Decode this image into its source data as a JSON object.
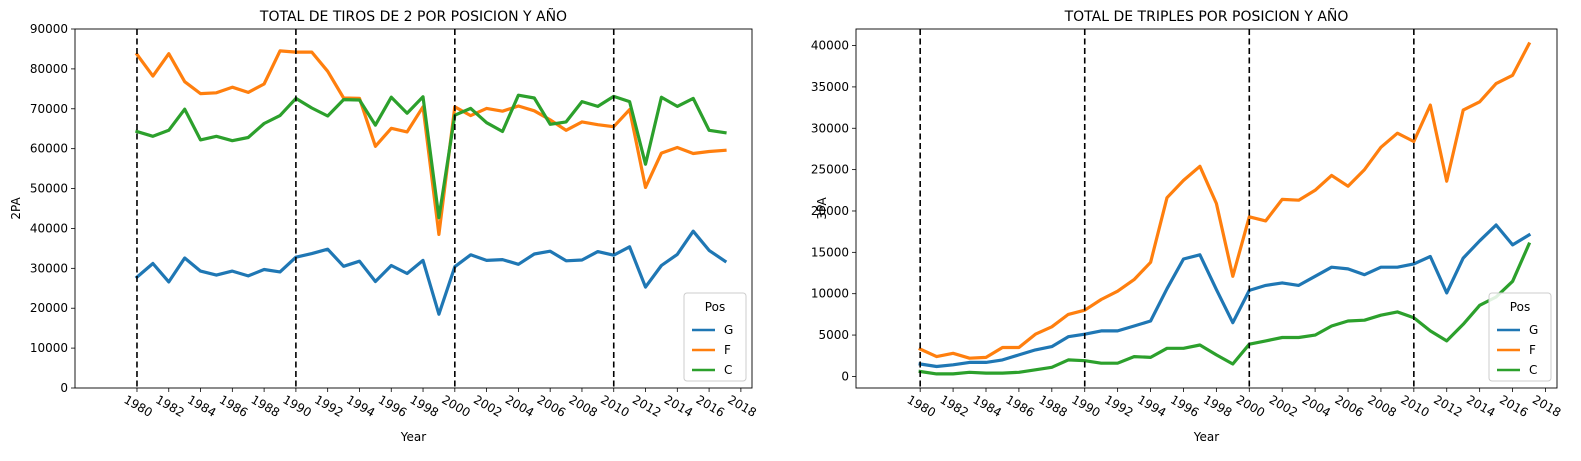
{
  "chart_data": [
    {
      "type": "line",
      "title": "TOTAL DE TIROS DE 2 POR POSICION Y AÑO",
      "xlabel": "Year",
      "ylabel": "2PA",
      "xlim": [
        1976.1,
        2018.7
      ],
      "ylim": [
        0,
        90000
      ],
      "xticks": [
        1980,
        1982,
        1984,
        1986,
        1988,
        1990,
        1992,
        1994,
        1996,
        1998,
        2000,
        2002,
        2004,
        2006,
        2008,
        2010,
        2012,
        2014,
        2016,
        2018
      ],
      "yticks": [
        0,
        10000,
        20000,
        30000,
        40000,
        50000,
        60000,
        70000,
        80000,
        90000
      ],
      "vlines": [
        1980,
        1990,
        2000,
        2010
      ],
      "legend": {
        "title": "Pos",
        "position": "lower-right"
      },
      "x": [
        1980,
        1981,
        1982,
        1983,
        1984,
        1985,
        1986,
        1987,
        1988,
        1989,
        1990,
        1991,
        1992,
        1993,
        1994,
        1995,
        1996,
        1997,
        1998,
        1999,
        2000,
        2001,
        2002,
        2003,
        2004,
        2005,
        2006,
        2007,
        2008,
        2009,
        2010,
        2011,
        2012,
        2013,
        2014,
        2015,
        2016,
        2017
      ],
      "series": [
        {
          "name": "G",
          "color": "#1f77b4",
          "values": [
            27800,
            31200,
            26600,
            32600,
            29300,
            28300,
            29300,
            28100,
            29700,
            29100,
            32800,
            33700,
            34800,
            30500,
            31800,
            26700,
            30700,
            28700,
            32000,
            18500,
            30400,
            33400,
            32000,
            32200,
            31000,
            33600,
            34300,
            31900,
            32100,
            34200,
            33300,
            35400,
            25300,
            30700,
            33500,
            39300,
            34500,
            31800
          ]
        },
        {
          "name": "F",
          "color": "#ff7f0e",
          "values": [
            83600,
            78200,
            83800,
            76800,
            73800,
            74000,
            75400,
            74100,
            76200,
            84500,
            84200,
            84200,
            79400,
            72700,
            72600,
            60600,
            65100,
            64200,
            70500,
            38500,
            70500,
            68300,
            70100,
            69400,
            70700,
            69500,
            67200,
            64600,
            66700,
            66000,
            65500,
            69800,
            50300,
            58900,
            60300,
            58800,
            59300,
            59600
          ]
        },
        {
          "name": "C",
          "color": "#2ca02c",
          "values": [
            64300,
            63100,
            64600,
            69900,
            62200,
            63100,
            62000,
            62800,
            66300,
            68300,
            72600,
            70200,
            68200,
            72300,
            72200,
            65900,
            72900,
            68900,
            73000,
            42700,
            68400,
            70100,
            66500,
            64300,
            73400,
            72700,
            66100,
            66700,
            71800,
            70600,
            73100,
            71800,
            56100,
            72900,
            70600,
            72600,
            64600,
            64000
          ]
        }
      ]
    },
    {
      "type": "line",
      "title": "TOTAL DE TRIPLES POR POSICION Y AÑO",
      "xlabel": "Year",
      "ylabel": "3PA",
      "xlim": [
        1976.1,
        2018.7
      ],
      "ylim": [
        -1400,
        42000
      ],
      "xticks": [
        1980,
        1982,
        1984,
        1986,
        1988,
        1990,
        1992,
        1994,
        1996,
        1998,
        2000,
        2002,
        2004,
        2006,
        2008,
        2010,
        2012,
        2014,
        2016,
        2018
      ],
      "yticks": [
        0,
        5000,
        10000,
        15000,
        20000,
        25000,
        30000,
        35000,
        40000
      ],
      "vlines": [
        1980,
        1990,
        2000,
        2010
      ],
      "legend": {
        "title": "Pos",
        "position": "lower-right"
      },
      "x": [
        1980,
        1981,
        1982,
        1983,
        1984,
        1985,
        1986,
        1987,
        1988,
        1989,
        1990,
        1991,
        1992,
        1993,
        1994,
        1995,
        1996,
        1997,
        1998,
        1999,
        2000,
        2001,
        2002,
        2003,
        2004,
        2005,
        2006,
        2007,
        2008,
        2009,
        2010,
        2011,
        2012,
        2013,
        2014,
        2015,
        2016,
        2017
      ],
      "series": [
        {
          "name": "G",
          "color": "#1f77b4",
          "values": [
            1500,
            1200,
            1400,
            1700,
            1700,
            2000,
            2600,
            3200,
            3600,
            4800,
            5100,
            5500,
            5500,
            6100,
            6700,
            10600,
            14200,
            14700,
            10500,
            6500,
            10400,
            11000,
            11300,
            11000,
            12100,
            13200,
            13000,
            12300,
            13200,
            13200,
            13600,
            14500,
            10100,
            14300,
            16400,
            18300,
            15900,
            17100
          ]
        },
        {
          "name": "F",
          "color": "#ff7f0e",
          "values": [
            3300,
            2400,
            2800,
            2200,
            2300,
            3500,
            3500,
            5100,
            6000,
            7500,
            8000,
            9300,
            10300,
            11700,
            13800,
            21600,
            23700,
            25400,
            20900,
            12100,
            19300,
            18800,
            21400,
            21300,
            22500,
            24300,
            23000,
            25000,
            27700,
            29400,
            28400,
            32800,
            23600,
            32200,
            33200,
            35400,
            36400,
            40200
          ]
        },
        {
          "name": "C",
          "color": "#2ca02c",
          "values": [
            600,
            300,
            300,
            500,
            400,
            400,
            500,
            800,
            1100,
            2000,
            1900,
            1600,
            1600,
            2400,
            2300,
            3400,
            3400,
            3800,
            2600,
            1500,
            3900,
            4300,
            4700,
            4700,
            5000,
            6100,
            6700,
            6800,
            7400,
            7800,
            7100,
            5500,
            4300,
            6300,
            8600,
            9600,
            11500,
            16000
          ]
        }
      ]
    }
  ]
}
